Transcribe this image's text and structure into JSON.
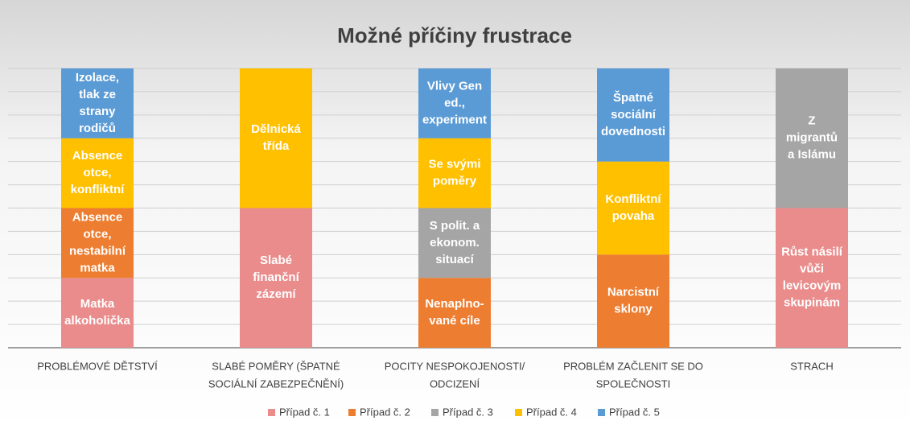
{
  "chart_data": {
    "type": "stacked_bar",
    "title": "Možné příčiny frustrace",
    "categories": [
      [
        "PROBLÉMOVÉ DĚTSTVÍ"
      ],
      [
        "SLABÉ POMĚRY (ŠPATNÉ",
        "SOCIÁLNÍ ZABEZPEČNĚNÍ)"
      ],
      [
        "POCITY NESPOKOJENOSTI/",
        "ODCIZENÍ"
      ],
      [
        "PROBLÉM ZAČLENIT SE DO",
        "SPOLEČNOSTI"
      ],
      [
        "STRACH"
      ]
    ],
    "series": [
      {
        "name": "Případ č. 1",
        "color": "#ea8c8c",
        "values": [
          3,
          6,
          null,
          null,
          6
        ],
        "labels": [
          [
            "Matka",
            "alkoholička"
          ],
          [
            "Slabé",
            "finanční",
            "zázemí"
          ],
          null,
          null,
          [
            "Růst násilí",
            "vůči",
            "levicovým",
            "skupinám"
          ]
        ]
      },
      {
        "name": "Případ č. 2",
        "color": "#ed7d31",
        "values": [
          3,
          null,
          3,
          4,
          null
        ],
        "labels": [
          [
            "Absence",
            "otce,",
            "nestabilní",
            "matka"
          ],
          null,
          [
            "Nenaplno-",
            "vané cíle"
          ],
          [
            "Narcistní",
            "sklony"
          ],
          null
        ]
      },
      {
        "name": "Případ č. 3",
        "color": "#a5a5a5",
        "values": [
          null,
          null,
          3,
          null,
          6
        ],
        "labels": [
          null,
          null,
          [
            "S polit. a",
            "ekonom.",
            "situací"
          ],
          null,
          [
            "Z",
            "migrantů",
            "a Islámu"
          ]
        ]
      },
      {
        "name": "Případ č. 4",
        "color": "#ffc000",
        "values": [
          3,
          6,
          3,
          4,
          null
        ],
        "labels": [
          [
            "Absence",
            "otce,",
            "konfliktní"
          ],
          [
            "Dělnická",
            "třída"
          ],
          [
            "Se svými",
            "poměry"
          ],
          [
            "Konfliktní",
            "povaha"
          ],
          null
        ]
      },
      {
        "name": "Případ č. 5",
        "color": "#5b9bd5",
        "values": [
          3,
          null,
          3,
          4,
          null
        ],
        "labels": [
          [
            "Izolace,",
            "tlak ze",
            "strany",
            "rodičů"
          ],
          null,
          [
            "Vlivy Gen",
            "ed.,",
            "experiment"
          ],
          [
            "Špatné",
            "sociální",
            "dovednosti"
          ],
          null
        ]
      }
    ],
    "ylim": [
      0,
      12
    ],
    "yticks": [
      0,
      1,
      2,
      3,
      4,
      5,
      6,
      7,
      8,
      9,
      10,
      11,
      12
    ],
    "grid": true,
    "legend": "bottom"
  }
}
